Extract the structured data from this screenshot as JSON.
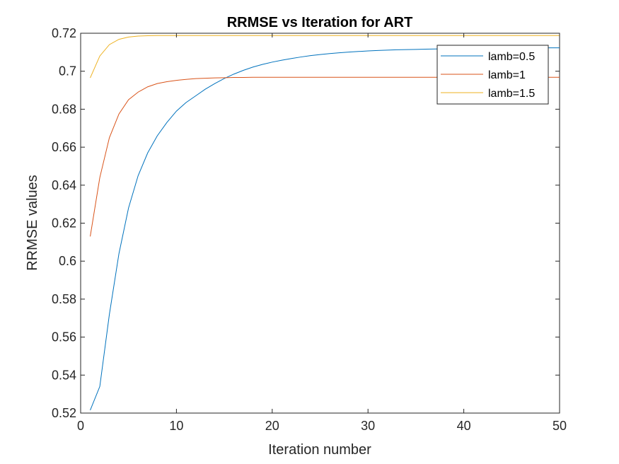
{
  "chart_data": {
    "type": "line",
    "title": "RRMSE vs Iteration for ART",
    "xlabel": "Iteration number",
    "ylabel": "RRMSE values",
    "xlim": [
      0,
      50
    ],
    "ylim": [
      0.52,
      0.72
    ],
    "xticks": [
      0,
      10,
      20,
      30,
      40,
      50
    ],
    "yticks": [
      0.52,
      0.54,
      0.56,
      0.58,
      0.6,
      0.62,
      0.64,
      0.66,
      0.68,
      0.7,
      0.72
    ],
    "xtick_labels": [
      "0",
      "10",
      "20",
      "30",
      "40",
      "50"
    ],
    "ytick_labels": [
      "0.52",
      "0.54",
      "0.56",
      "0.58",
      "0.6",
      "0.62",
      "0.64",
      "0.66",
      "0.68",
      "0.7",
      "0.72"
    ],
    "grid": false,
    "legend_position": "top-right",
    "x": [
      1,
      2,
      3,
      4,
      5,
      6,
      7,
      8,
      9,
      10,
      11,
      12,
      13,
      14,
      15,
      16,
      17,
      18,
      19,
      20,
      21,
      22,
      23,
      24,
      25,
      26,
      27,
      28,
      29,
      30,
      31,
      32,
      33,
      34,
      35,
      36,
      37,
      38,
      39,
      40,
      41,
      42,
      43,
      44,
      45,
      46,
      47,
      48,
      49,
      50
    ],
    "series": [
      {
        "name": "lamb=0.5",
        "color": "#0072BD",
        "values": [
          0.5215,
          0.534,
          0.572,
          0.604,
          0.628,
          0.645,
          0.657,
          0.666,
          0.673,
          0.679,
          0.6835,
          0.687,
          0.6905,
          0.6935,
          0.6962,
          0.6985,
          0.7005,
          0.7022,
          0.7036,
          0.7048,
          0.7058,
          0.7067,
          0.7075,
          0.7082,
          0.7088,
          0.7093,
          0.7097,
          0.7101,
          0.7104,
          0.7107,
          0.7109,
          0.7111,
          0.7113,
          0.7114,
          0.7115,
          0.7116,
          0.7117,
          0.7118,
          0.7119,
          0.712,
          0.712,
          0.7121,
          0.7121,
          0.7122,
          0.7122,
          0.7122,
          0.7123,
          0.7123,
          0.7123,
          0.7123
        ]
      },
      {
        "name": "lamb=1",
        "color": "#D95319",
        "values": [
          0.613,
          0.644,
          0.665,
          0.6775,
          0.685,
          0.689,
          0.6918,
          0.6935,
          0.6945,
          0.6952,
          0.6957,
          0.6961,
          0.6963,
          0.6965,
          0.6966,
          0.6967,
          0.6967,
          0.6968,
          0.6968,
          0.6968,
          0.6968,
          0.6968,
          0.6968,
          0.6968,
          0.6968,
          0.6968,
          0.6968,
          0.6968,
          0.6968,
          0.6968,
          0.6968,
          0.6968,
          0.6968,
          0.6968,
          0.6968,
          0.6968,
          0.6968,
          0.6968,
          0.6968,
          0.6968,
          0.6968,
          0.6968,
          0.6968,
          0.6968,
          0.6968,
          0.6968,
          0.6968,
          0.6968,
          0.6968,
          0.6968
        ]
      },
      {
        "name": "lamb=1.5",
        "color": "#EDB120",
        "values": [
          0.6965,
          0.708,
          0.714,
          0.7168,
          0.718,
          0.7185,
          0.7187,
          0.7188,
          0.7188,
          0.7188,
          0.7188,
          0.7188,
          0.7188,
          0.7188,
          0.7188,
          0.7188,
          0.7188,
          0.7188,
          0.7188,
          0.7188,
          0.7188,
          0.7188,
          0.7188,
          0.7188,
          0.7188,
          0.7188,
          0.7188,
          0.7188,
          0.7188,
          0.7188,
          0.7188,
          0.7188,
          0.7188,
          0.7188,
          0.7188,
          0.7188,
          0.7188,
          0.7188,
          0.7188,
          0.7188,
          0.7188,
          0.7188,
          0.7188,
          0.7188,
          0.7188,
          0.7188,
          0.7188,
          0.7188,
          0.7188,
          0.7188
        ]
      }
    ]
  }
}
